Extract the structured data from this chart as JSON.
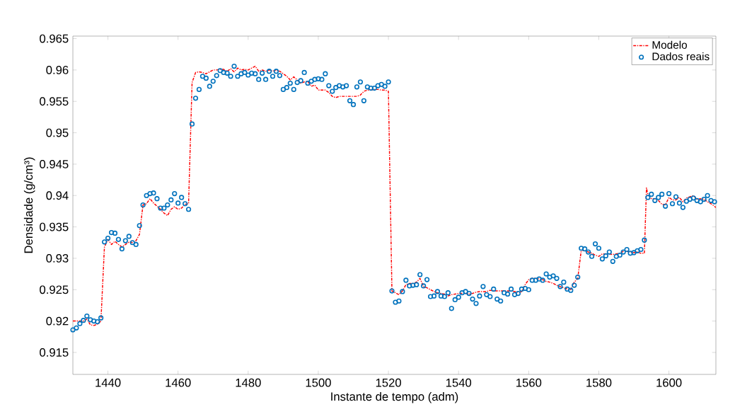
{
  "chart_data": {
    "type": "scatter",
    "xlabel": "Instante de tempo (adm)",
    "ylabel": "Densidade (g/cm³)",
    "xlim": [
      1430,
      1613.4
    ],
    "ylim": [
      0.9115,
      0.9654
    ],
    "xticks": [
      1440,
      1460,
      1480,
      1500,
      1520,
      1540,
      1560,
      1580,
      1600
    ],
    "yticks": [
      0.915,
      0.92,
      0.925,
      0.93,
      0.935,
      0.94,
      0.945,
      0.95,
      0.955,
      0.96,
      0.965
    ],
    "grid": false,
    "legend": "top right",
    "series": [
      {
        "name": "Modelo",
        "type": "line",
        "color": "#ff0000",
        "line_style": "dashdot",
        "marker": "none",
        "x": [
          1430,
          1433,
          1434,
          1435,
          1436,
          1437,
          1438,
          1439,
          1440,
          1441,
          1442,
          1443,
          1444,
          1445,
          1446,
          1447,
          1448,
          1449,
          1450,
          1451,
          1452,
          1453,
          1454,
          1455,
          1456,
          1457,
          1458,
          1459,
          1460,
          1461,
          1462,
          1463,
          1464,
          1465,
          1466,
          1467,
          1468,
          1469,
          1470,
          1471,
          1472,
          1473,
          1474,
          1475,
          1476,
          1477,
          1478,
          1479,
          1480,
          1481,
          1482,
          1483,
          1484,
          1485,
          1486,
          1487,
          1488,
          1489,
          1490,
          1491,
          1492,
          1493,
          1494,
          1495,
          1496,
          1497,
          1498,
          1499,
          1500,
          1501,
          1502,
          1503,
          1504,
          1505,
          1506,
          1507,
          1508,
          1509,
          1510,
          1511,
          1512,
          1513,
          1514,
          1515,
          1516,
          1517,
          1518,
          1519,
          1520,
          1521,
          1522,
          1523,
          1524,
          1525,
          1526,
          1527,
          1528,
          1529,
          1530,
          1531,
          1532,
          1533,
          1534,
          1535,
          1536,
          1537,
          1538,
          1539,
          1540,
          1541,
          1542,
          1543,
          1544,
          1545,
          1546,
          1547,
          1548,
          1549,
          1550,
          1551,
          1552,
          1553,
          1554,
          1555,
          1556,
          1557,
          1558,
          1559,
          1560,
          1561,
          1562,
          1563,
          1564,
          1565,
          1566,
          1567,
          1568,
          1569,
          1570,
          1571,
          1572,
          1573,
          1574,
          1575,
          1576,
          1577,
          1578,
          1579,
          1580,
          1581,
          1582,
          1583,
          1584,
          1585,
          1586,
          1587,
          1588,
          1589,
          1590,
          1591,
          1592,
          1593,
          1593.6,
          1594,
          1595,
          1596,
          1597,
          1598,
          1599,
          1600,
          1601,
          1602,
          1603,
          1604,
          1605,
          1606,
          1607,
          1608,
          1609,
          1610,
          1611,
          1612,
          1613.4
        ],
        "values": [
          0.92,
          0.92,
          0.9203,
          0.9194,
          0.9193,
          0.9195,
          0.92,
          0.9318,
          0.933,
          0.9322,
          0.9327,
          0.9322,
          0.9318,
          0.9322,
          0.9326,
          0.9325,
          0.9328,
          0.9338,
          0.9385,
          0.9387,
          0.9395,
          0.9388,
          0.9383,
          0.9378,
          0.9372,
          0.9368,
          0.9378,
          0.9382,
          0.9378,
          0.938,
          0.9386,
          0.9387,
          0.958,
          0.9596,
          0.9597,
          0.9596,
          0.9594,
          0.9597,
          0.96,
          0.96,
          0.9601,
          0.9601,
          0.9598,
          0.9602,
          0.9597,
          0.9603,
          0.96,
          0.9601,
          0.96,
          0.9603,
          0.9606,
          0.9598,
          0.96,
          0.9598,
          0.96,
          0.9598,
          0.96,
          0.9598,
          0.9594,
          0.959,
          0.9584,
          0.9589,
          0.9584,
          0.9579,
          0.9581,
          0.9582,
          0.9574,
          0.9576,
          0.9568,
          0.9568,
          0.9568,
          0.9564,
          0.9558,
          0.9556,
          0.9558,
          0.9558,
          0.9558,
          0.9558,
          0.9558,
          0.9558,
          0.956,
          0.9566,
          0.9568,
          0.9568,
          0.9569,
          0.9569,
          0.9568,
          0.9568,
          0.9566,
          0.9248,
          0.9245,
          0.9242,
          0.9248,
          0.9258,
          0.926,
          0.926,
          0.9262,
          0.9268,
          0.9255,
          0.9253,
          0.925,
          0.9247,
          0.9245,
          0.9244,
          0.9243,
          0.924,
          0.9242,
          0.9243,
          0.9244,
          0.9244,
          0.9244,
          0.9243,
          0.9244,
          0.9246,
          0.9247,
          0.9247,
          0.9247,
          0.9249,
          0.9248,
          0.9248,
          0.9248,
          0.9248,
          0.9248,
          0.9248,
          0.9247,
          0.9246,
          0.9247,
          0.9258,
          0.9266,
          0.9268,
          0.9268,
          0.9267,
          0.9266,
          0.9263,
          0.9262,
          0.926,
          0.9257,
          0.9255,
          0.9253,
          0.9251,
          0.925,
          0.9262,
          0.9268,
          0.9313,
          0.9312,
          0.931,
          0.9308,
          0.9305,
          0.9303,
          0.9307,
          0.9307,
          0.9307,
          0.9306,
          0.9307,
          0.9308,
          0.9311,
          0.9311,
          0.931,
          0.9309,
          0.931,
          0.9308,
          0.9308,
          0.9412,
          0.9402,
          0.9395,
          0.9395,
          0.9392,
          0.9386,
          0.9385,
          0.9397,
          0.9393,
          0.9393,
          0.9397,
          0.939,
          0.9396,
          0.9398,
          0.94,
          0.9394,
          0.9395,
          0.9394,
          0.939,
          0.9387,
          0.9381
        ]
      },
      {
        "name": "Dados reais",
        "color": "#0072bd",
        "marker": "circle",
        "x": [
          1430,
          1431,
          1432,
          1433,
          1434,
          1435,
          1436,
          1437,
          1438,
          1439,
          1440,
          1441,
          1442,
          1443,
          1444,
          1445,
          1446,
          1447,
          1448,
          1449,
          1450,
          1451,
          1452,
          1453,
          1454,
          1455,
          1456,
          1457,
          1458,
          1459,
          1460,
          1461,
          1462,
          1463,
          1464,
          1465,
          1466,
          1467,
          1468,
          1469,
          1470,
          1471,
          1472,
          1473,
          1474,
          1475,
          1476,
          1477,
          1478,
          1479,
          1480,
          1481,
          1482,
          1483,
          1484,
          1485,
          1486,
          1487,
          1488,
          1489,
          1490,
          1491,
          1492,
          1493,
          1494,
          1495,
          1496,
          1497,
          1498,
          1499,
          1500,
          1501,
          1502,
          1503,
          1504,
          1505,
          1506,
          1507,
          1508,
          1509,
          1510,
          1511,
          1512,
          1513,
          1514,
          1515,
          1516,
          1517,
          1518,
          1519,
          1520,
          1521,
          1522,
          1523,
          1524,
          1525,
          1526,
          1527,
          1528,
          1529,
          1530,
          1531,
          1532,
          1533,
          1534,
          1535,
          1536,
          1537,
          1538,
          1539,
          1540,
          1541,
          1542,
          1543,
          1544,
          1545,
          1546,
          1547,
          1548,
          1549,
          1550,
          1551,
          1552,
          1553,
          1554,
          1555,
          1556,
          1557,
          1558,
          1559,
          1560,
          1561,
          1562,
          1563,
          1564,
          1565,
          1566,
          1567,
          1568,
          1569,
          1570,
          1571,
          1572,
          1573,
          1574,
          1575,
          1576,
          1577,
          1578,
          1579,
          1580,
          1581,
          1582,
          1583,
          1584,
          1585,
          1586,
          1587,
          1588,
          1589,
          1590,
          1591,
          1592,
          1593,
          1594,
          1595,
          1596,
          1597,
          1598,
          1599,
          1600,
          1601,
          1602,
          1603,
          1604,
          1605,
          1606,
          1607,
          1608,
          1609,
          1610,
          1611,
          1612,
          1613
        ],
        "values": [
          0.9186,
          0.9189,
          0.9196,
          0.9201,
          0.9208,
          0.9202,
          0.92,
          0.9199,
          0.9205,
          0.9326,
          0.9332,
          0.9341,
          0.934,
          0.933,
          0.9315,
          0.9328,
          0.9335,
          0.9325,
          0.9322,
          0.9352,
          0.9385,
          0.94,
          0.9403,
          0.9404,
          0.9395,
          0.938,
          0.938,
          0.9385,
          0.9393,
          0.9403,
          0.9388,
          0.9397,
          0.9387,
          0.9378,
          0.9514,
          0.9555,
          0.9569,
          0.959,
          0.9587,
          0.9574,
          0.9582,
          0.9591,
          0.9599,
          0.9596,
          0.9595,
          0.959,
          0.9606,
          0.959,
          0.9594,
          0.9596,
          0.9592,
          0.9595,
          0.9594,
          0.9585,
          0.9595,
          0.9585,
          0.9598,
          0.959,
          0.9598,
          0.9591,
          0.9569,
          0.9572,
          0.9579,
          0.9569,
          0.958,
          0.9583,
          0.9596,
          0.9579,
          0.9582,
          0.9585,
          0.9586,
          0.9585,
          0.9594,
          0.9575,
          0.9566,
          0.9572,
          0.9575,
          0.9573,
          0.9575,
          0.9551,
          0.9545,
          0.9573,
          0.9581,
          0.9551,
          0.9573,
          0.9571,
          0.9571,
          0.9575,
          0.9577,
          0.9574,
          0.9581,
          0.9248,
          0.923,
          0.9232,
          0.9247,
          0.9265,
          0.9256,
          0.9257,
          0.9258,
          0.9274,
          0.9256,
          0.9266,
          0.9239,
          0.924,
          0.9247,
          0.924,
          0.9239,
          0.9245,
          0.922,
          0.9234,
          0.9238,
          0.9245,
          0.9247,
          0.9244,
          0.9235,
          0.9228,
          0.924,
          0.9255,
          0.9242,
          0.9239,
          0.9251,
          0.9235,
          0.9232,
          0.9245,
          0.9243,
          0.9251,
          0.9242,
          0.9244,
          0.9251,
          0.9252,
          0.925,
          0.9265,
          0.9265,
          0.9267,
          0.9265,
          0.9275,
          0.927,
          0.9272,
          0.9268,
          0.9255,
          0.9262,
          0.9251,
          0.9249,
          0.9257,
          0.927,
          0.9316,
          0.9315,
          0.931,
          0.9303,
          0.9323,
          0.9316,
          0.9299,
          0.9304,
          0.931,
          0.9295,
          0.9303,
          0.9305,
          0.931,
          0.9314,
          0.9308,
          0.9309,
          0.9312,
          0.9314,
          0.9329,
          0.9397,
          0.9402,
          0.9392,
          0.9397,
          0.9402,
          0.9383,
          0.9403,
          0.9387,
          0.9398,
          0.9388,
          0.9381,
          0.9391,
          0.9394,
          0.9396,
          0.9392,
          0.939,
          0.9394,
          0.94,
          0.9392,
          0.939
        ]
      }
    ]
  }
}
